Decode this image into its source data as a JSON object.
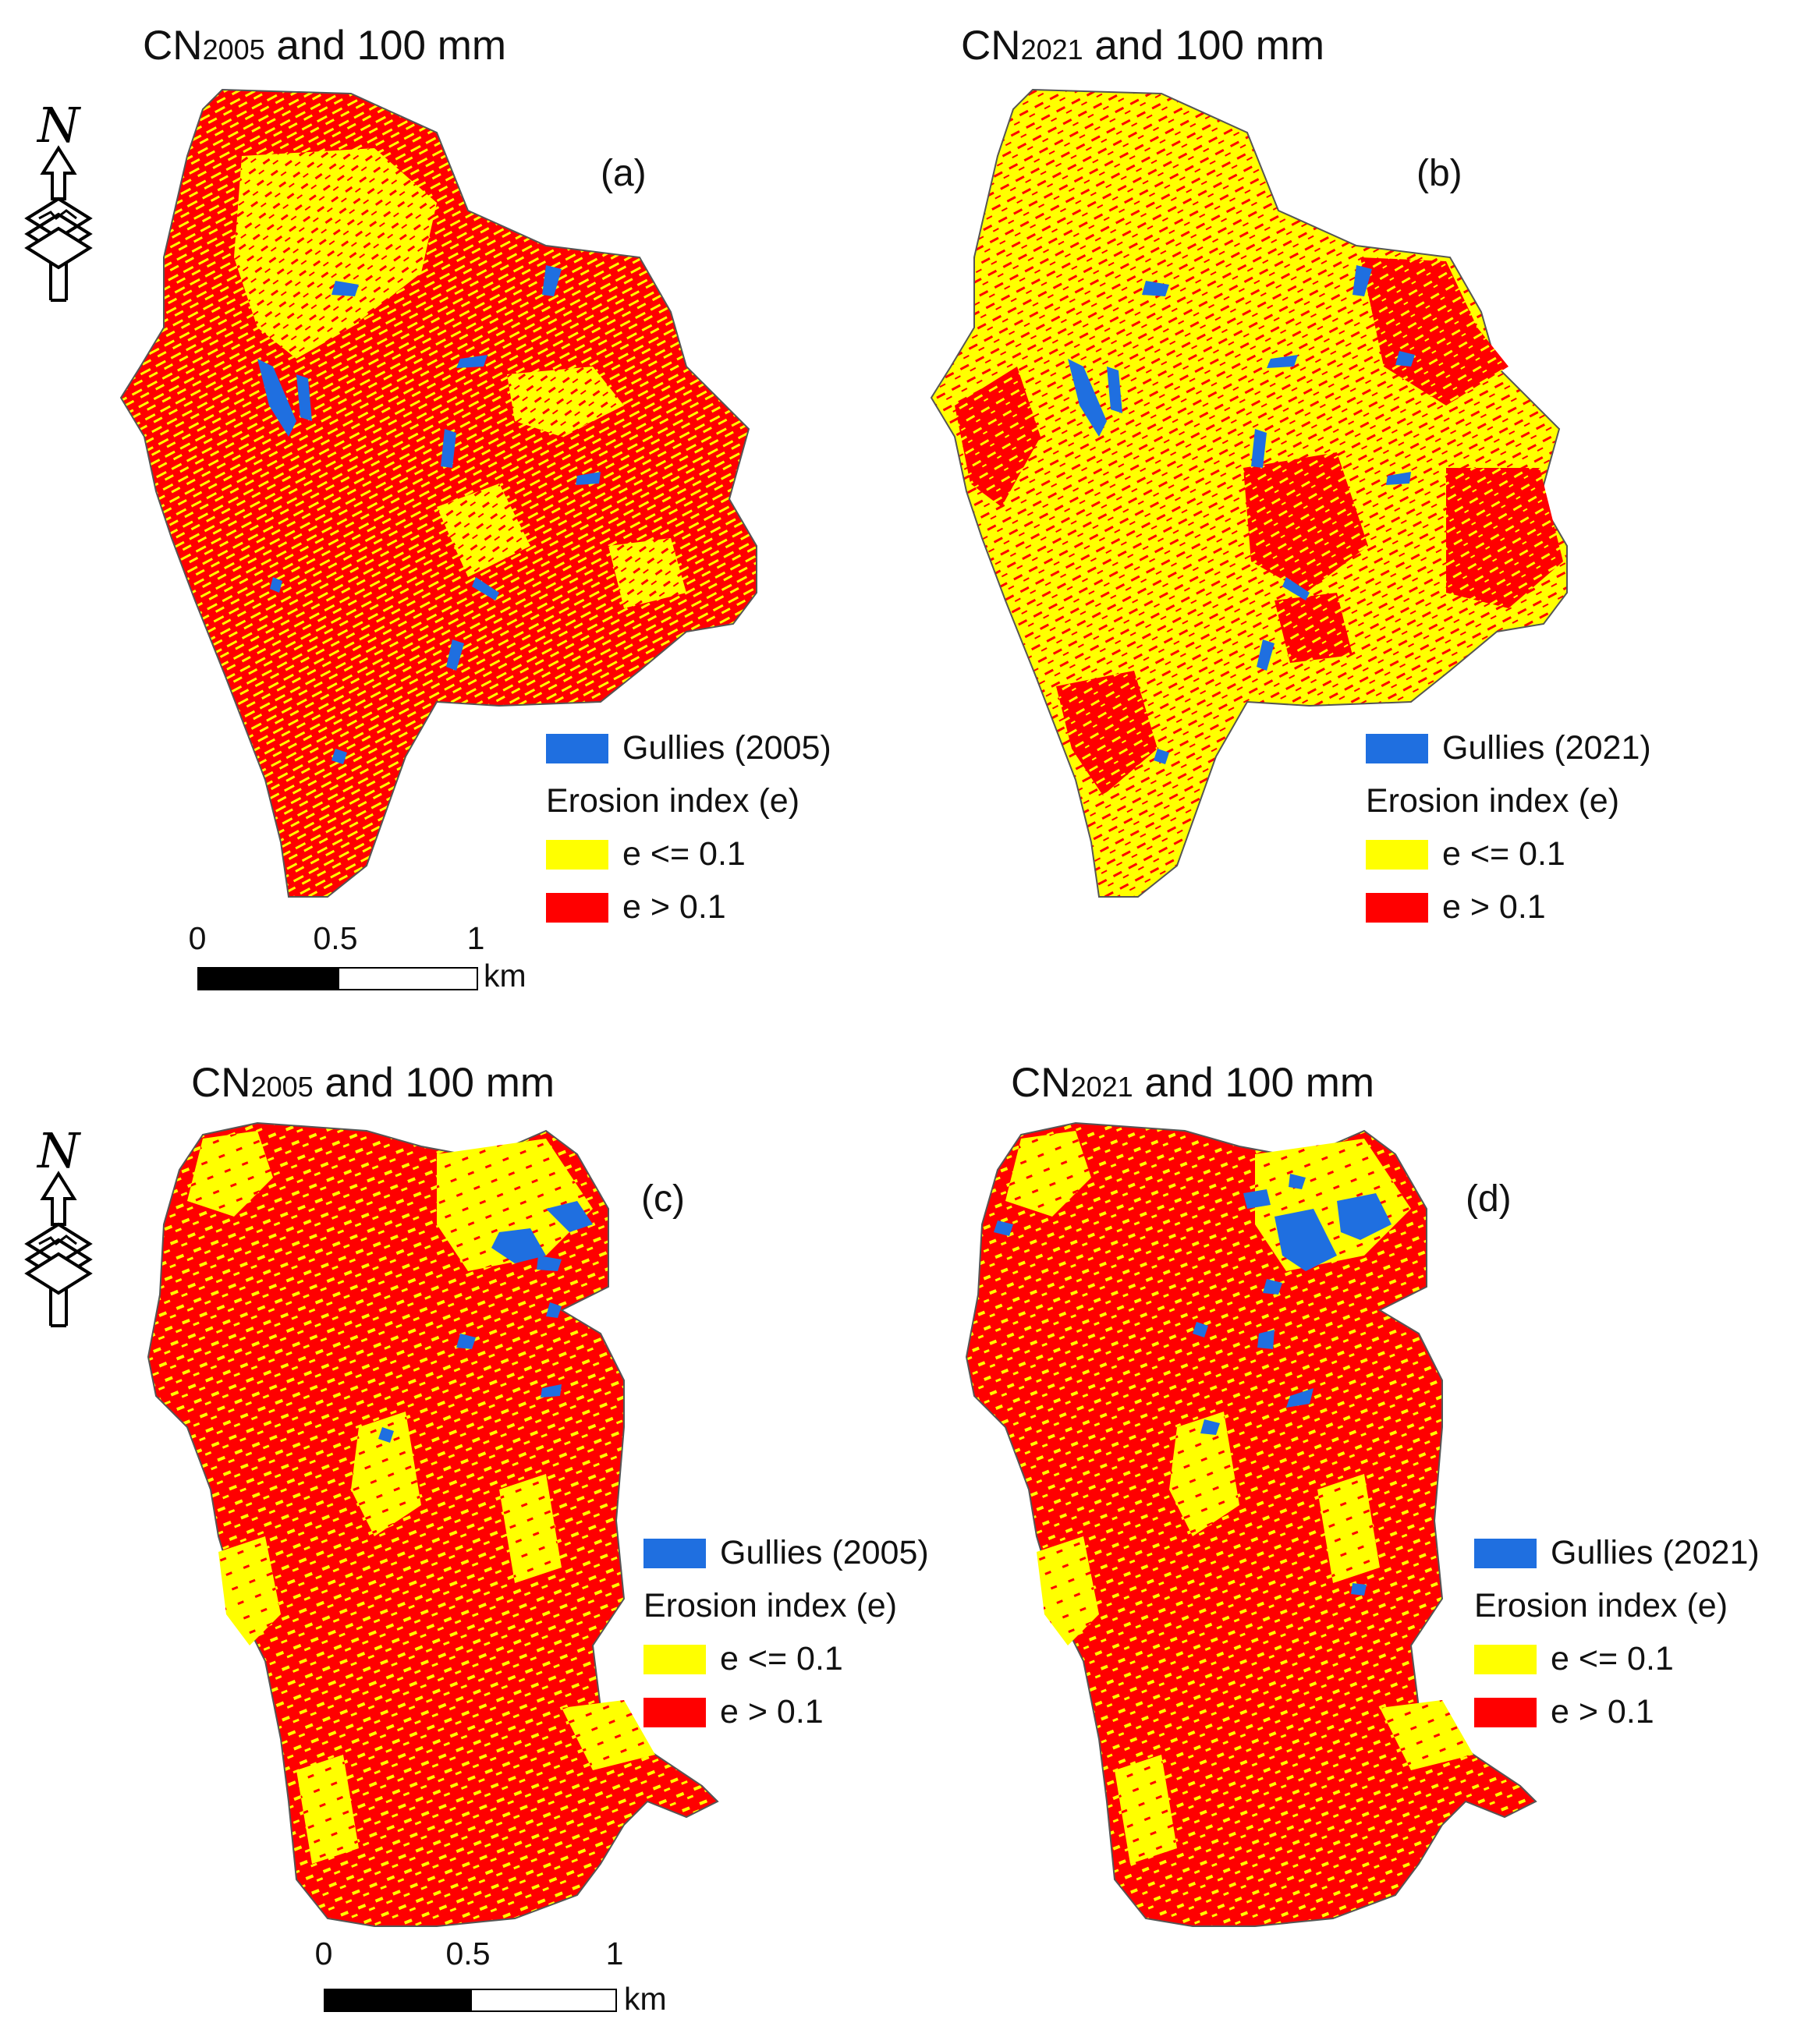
{
  "panels": [
    {
      "id": "a",
      "title_prefix": "CN",
      "title_sub": "2005",
      "title_suffix": " and 100 mm",
      "letter": "(a)",
      "legend": {
        "gullies": "Gullies (2005)",
        "heading": "Erosion index (e)",
        "low": "e <= 0.1",
        "high": "e > 0.1"
      },
      "has_north_arrow": true,
      "north_label": "N",
      "scalebar": {
        "ticks": [
          "0",
          "0.5",
          "1"
        ],
        "unit": "km"
      }
    },
    {
      "id": "b",
      "title_prefix": "CN",
      "title_sub": "2021",
      "title_suffix": " and 100 mm",
      "letter": "(b)",
      "legend": {
        "gullies": "Gullies (2021)",
        "heading": "Erosion index (e)",
        "low": "e <= 0.1",
        "high": "e > 0.1"
      },
      "has_north_arrow": false,
      "scalebar": null
    },
    {
      "id": "c",
      "title_prefix": "CN",
      "title_sub": "2005",
      "title_suffix": " and 100 mm",
      "letter": "(c)",
      "legend": {
        "gullies": "Gullies (2005)",
        "heading": "Erosion index (e)",
        "low": "e <= 0.1",
        "high": "e > 0.1"
      },
      "has_north_arrow": true,
      "north_label": "N",
      "scalebar": {
        "ticks": [
          "0",
          "0.5",
          "1"
        ],
        "unit": "km"
      }
    },
    {
      "id": "d",
      "title_prefix": "CN",
      "title_sub": "2021",
      "title_suffix": " and 100 mm",
      "letter": "(d)",
      "legend": {
        "gullies": "Gullies (2021)",
        "heading": "Erosion index (e)",
        "low": "e <= 0.1",
        "high": "e > 0.1"
      },
      "has_north_arrow": false,
      "scalebar": null
    }
  ],
  "colors": {
    "gullies": "#1f6fe0",
    "low": "#ffff00",
    "high": "#ff0000",
    "outline": "#555555"
  },
  "icons": {
    "north_arrow": "north-arrow-icon"
  }
}
